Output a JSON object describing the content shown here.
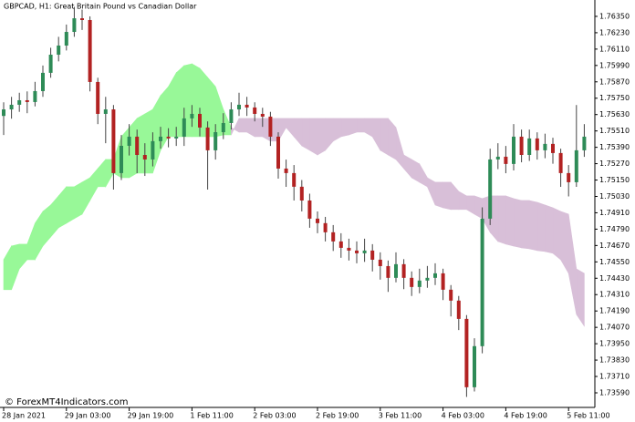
{
  "chart_data": {
    "type": "candlestick",
    "title": "GBPCAD, H1:  Great Britain Pound vs Canadian Dollar",
    "watermark": "© ForexMT4Indicators.com",
    "categories": [
      "28 Jan 2021",
      null,
      null,
      null,
      null,
      null,
      null,
      null,
      "29 Jan 03:00",
      null,
      null,
      null,
      null,
      null,
      null,
      null,
      "29 Jan 19:00",
      null,
      null,
      null,
      null,
      null,
      null,
      null,
      "1 Feb 11:00",
      null,
      null,
      null,
      null,
      null,
      null,
      null,
      "2 Feb 03:00",
      null,
      null,
      null,
      null,
      null,
      null,
      null,
      "2 Feb 19:00",
      null,
      null,
      null,
      null,
      null,
      null,
      null,
      "3 Feb 11:00",
      null,
      null,
      null,
      null,
      null,
      null,
      null,
      "4 Feb 03:00",
      null,
      null,
      null,
      null,
      null,
      null,
      null,
      "4 Feb 19:00",
      null,
      null,
      null,
      null,
      null,
      null,
      null,
      "5 Feb 11:00",
      null,
      null
    ],
    "open": [
      1.7562,
      1.75668,
      1.75702,
      1.75735,
      1.75722,
      1.75802,
      1.75936,
      1.76069,
      1.76136,
      1.76236,
      1.76336,
      1.76323,
      1.75869,
      1.75635,
      1.75668,
      1.75201,
      1.75401,
      1.75468,
      1.75334,
      1.75301,
      1.75435,
      1.75468,
      1.75455,
      1.75468,
      1.75602,
      1.75635,
      1.75535,
      1.75368,
      1.75501,
      1.75568,
      1.75668,
      1.75702,
      1.75682,
      1.75635,
      1.75615,
      1.75468,
      1.75234,
      1.75201,
      1.75101,
      1.75,
      1.74867,
      1.74834,
      1.74767,
      1.747,
      1.74653,
      1.74633,
      1.74613,
      1.74633,
      1.74566,
      1.74519,
      1.74433,
      1.74533,
      1.74433,
      1.74366,
      1.74413,
      1.74433,
      1.74466,
      1.74346,
      1.74266,
      1.74132,
      1.73631,
      1.73932,
      1.74867,
      1.75301,
      1.75321,
      1.75268,
      1.75468,
      1.75334,
      1.75455,
      1.75368,
      1.75415,
      1.75348,
      1.75201,
      1.75134,
      1.75368
    ],
    "high": [
      1.7572,
      1.7576,
      1.7579,
      1.758,
      1.7587,
      1.7599,
      1.7612,
      1.762,
      1.7629,
      1.7642,
      1.764,
      1.7635,
      1.759,
      1.7576,
      1.757,
      1.7548,
      1.7556,
      1.7552,
      1.7542,
      1.755,
      1.7554,
      1.7553,
      1.7554,
      1.7568,
      1.757,
      1.7568,
      1.7558,
      1.7556,
      1.7564,
      1.7572,
      1.7579,
      1.7576,
      1.7572,
      1.7568,
      1.7565,
      1.755,
      1.753,
      1.7526,
      1.7515,
      1.7505,
      1.7492,
      1.7488,
      1.7482,
      1.7476,
      1.7472,
      1.747,
      1.7472,
      1.7468,
      1.7462,
      1.7456,
      1.7462,
      1.7457,
      1.7448,
      1.745,
      1.7452,
      1.7454,
      1.745,
      1.7438,
      1.743,
      1.7416,
      1.7399,
      1.7495,
      1.7538,
      1.7542,
      1.754,
      1.7556,
      1.7552,
      1.7552,
      1.755,
      1.7549,
      1.7546,
      1.7538,
      1.7526,
      1.757,
      1.7556
    ],
    "low": [
      1.7548,
      1.756,
      1.7565,
      1.7564,
      1.7569,
      1.7576,
      1.759,
      1.7602,
      1.761,
      1.762,
      1.7625,
      1.758,
      1.7556,
      1.7542,
      1.7508,
      1.7515,
      1.7533,
      1.752,
      1.7518,
      1.7525,
      1.7538,
      1.7539,
      1.754,
      1.754,
      1.7554,
      1.7547,
      1.7508,
      1.753,
      1.7545,
      1.7552,
      1.7562,
      1.7562,
      1.7558,
      1.7554,
      1.754,
      1.7516,
      1.751,
      1.75,
      1.7492,
      1.748,
      1.7476,
      1.747,
      1.7463,
      1.7458,
      1.7456,
      1.7454,
      1.7455,
      1.7448,
      1.7442,
      1.7433,
      1.744,
      1.7435,
      1.743,
      1.7432,
      1.7436,
      1.7438,
      1.7427,
      1.7415,
      1.7405,
      1.7356,
      1.736,
      1.7388,
      1.7482,
      1.7523,
      1.752,
      1.7522,
      1.7528,
      1.7529,
      1.753,
      1.7531,
      1.7527,
      1.751,
      1.7503,
      1.751,
      1.7532
    ],
    "close": [
      1.75668,
      1.75702,
      1.75735,
      1.75722,
      1.75802,
      1.75936,
      1.76069,
      1.76136,
      1.76236,
      1.76336,
      1.76323,
      1.75869,
      1.75635,
      1.75668,
      1.75201,
      1.75401,
      1.75468,
      1.75334,
      1.75301,
      1.75435,
      1.75468,
      1.75455,
      1.75468,
      1.75602,
      1.75635,
      1.75535,
      1.75368,
      1.75501,
      1.75568,
      1.75668,
      1.75702,
      1.75682,
      1.75635,
      1.75615,
      1.75468,
      1.75234,
      1.75201,
      1.75101,
      1.75,
      1.74867,
      1.74834,
      1.74767,
      1.747,
      1.74653,
      1.74633,
      1.74613,
      1.74633,
      1.74566,
      1.74519,
      1.74433,
      1.74533,
      1.74433,
      1.74366,
      1.74413,
      1.74433,
      1.74466,
      1.74346,
      1.74266,
      1.74132,
      1.73631,
      1.73932,
      1.74867,
      1.75301,
      1.75321,
      1.75268,
      1.75468,
      1.75334,
      1.75455,
      1.75368,
      1.75415,
      1.75348,
      1.75201,
      1.75134,
      1.75368,
      1.75468
    ],
    "span_a": [
      1.74566,
      1.74666,
      1.7468,
      1.7468,
      1.74833,
      1.7492,
      1.74967,
      1.75034,
      1.75101,
      1.75101,
      1.75134,
      1.75167,
      1.75234,
      1.75301,
      1.75301,
      1.75468,
      1.75535,
      1.75602,
      1.75635,
      1.75668,
      1.75769,
      1.75835,
      1.75936,
      1.75989,
      1.76002,
      1.75969,
      1.75902,
      1.75835,
      1.75668,
      1.75535,
      1.75501,
      1.75501,
      1.75468,
      1.75468,
      1.75435,
      1.75435,
      1.75535,
      1.75468,
      1.75401,
      1.75368,
      1.75334,
      1.75368,
      1.75435,
      1.75468,
      1.75481,
      1.75501,
      1.75501,
      1.75468,
      1.75368,
      1.75334,
      1.75301,
      1.75234,
      1.75167,
      1.75134,
      1.75101,
      1.74967,
      1.74947,
      1.74934,
      1.74934,
      1.74934,
      1.749,
      1.74867,
      1.74767,
      1.747,
      1.7468,
      1.74666,
      1.74653,
      1.74646,
      1.74633,
      1.74626,
      1.74613,
      1.74566,
      1.74466,
      1.74165,
      1.74079
    ],
    "span_b": [
      1.74346,
      1.74346,
      1.74499,
      1.74566,
      1.74566,
      1.74666,
      1.74733,
      1.748,
      1.74833,
      1.74867,
      1.749,
      1.75,
      1.75101,
      1.75101,
      1.75201,
      1.75167,
      1.75167,
      1.75201,
      1.75201,
      1.75201,
      1.75368,
      1.75468,
      1.75468,
      1.75468,
      1.75468,
      1.75468,
      1.75468,
      1.75468,
      1.75481,
      1.75481,
      1.75602,
      1.75602,
      1.75602,
      1.75602,
      1.75602,
      1.75602,
      1.75602,
      1.75602,
      1.75602,
      1.75602,
      1.75602,
      1.75602,
      1.75602,
      1.75602,
      1.75602,
      1.75602,
      1.75602,
      1.75602,
      1.75602,
      1.75602,
      1.75535,
      1.75334,
      1.75301,
      1.75268,
      1.75167,
      1.75134,
      1.75134,
      1.75134,
      1.75067,
      1.75034,
      1.75034,
      1.75014,
      1.75034,
      1.75034,
      1.75034,
      1.75014,
      1.75,
      1.75,
      1.74987,
      1.74967,
      1.74947,
      1.7492,
      1.749,
      1.74499,
      1.74466
    ],
    "up_color": "#2e8b57",
    "down_color": "#b22222",
    "wick_color": "#444444",
    "cloud_up_color": "#98f898",
    "cloud_down_color": "#d8bfd8",
    "ylim": [
      1.73483,
      1.7647
    ],
    "yticks": [
      {
        "value": 1.7635,
        "label": "1.76350"
      },
      {
        "value": 1.7623,
        "label": "1.76230"
      },
      {
        "value": 1.7611,
        "label": "1.76110"
      },
      {
        "value": 1.7599,
        "label": "1.75990"
      },
      {
        "value": 1.7587,
        "label": "1.75870"
      },
      {
        "value": 1.7575,
        "label": "1.75750"
      },
      {
        "value": 1.7563,
        "label": "1.75630"
      },
      {
        "value": 1.7551,
        "label": "1.75510"
      },
      {
        "value": 1.7539,
        "label": "1.75390"
      },
      {
        "value": 1.7527,
        "label": "1.75270"
      },
      {
        "value": 1.7515,
        "label": "1.75150"
      },
      {
        "value": 1.7503,
        "label": "1.75030"
      },
      {
        "value": 1.7491,
        "label": "1.74910"
      },
      {
        "value": 1.7479,
        "label": "1.74790"
      },
      {
        "value": 1.7467,
        "label": "1.74670"
      },
      {
        "value": 1.7455,
        "label": "1.74550"
      },
      {
        "value": 1.7443,
        "label": "1.74430"
      },
      {
        "value": 1.7431,
        "label": "1.74310"
      },
      {
        "value": 1.7419,
        "label": "1.74190"
      },
      {
        "value": 1.7407,
        "label": "1.74070"
      },
      {
        "value": 1.7395,
        "label": "1.73950"
      },
      {
        "value": 1.7383,
        "label": "1.73830"
      },
      {
        "value": 1.7371,
        "label": "1.73710"
      },
      {
        "value": 1.7359,
        "label": "1.73590"
      }
    ],
    "grid": false
  }
}
